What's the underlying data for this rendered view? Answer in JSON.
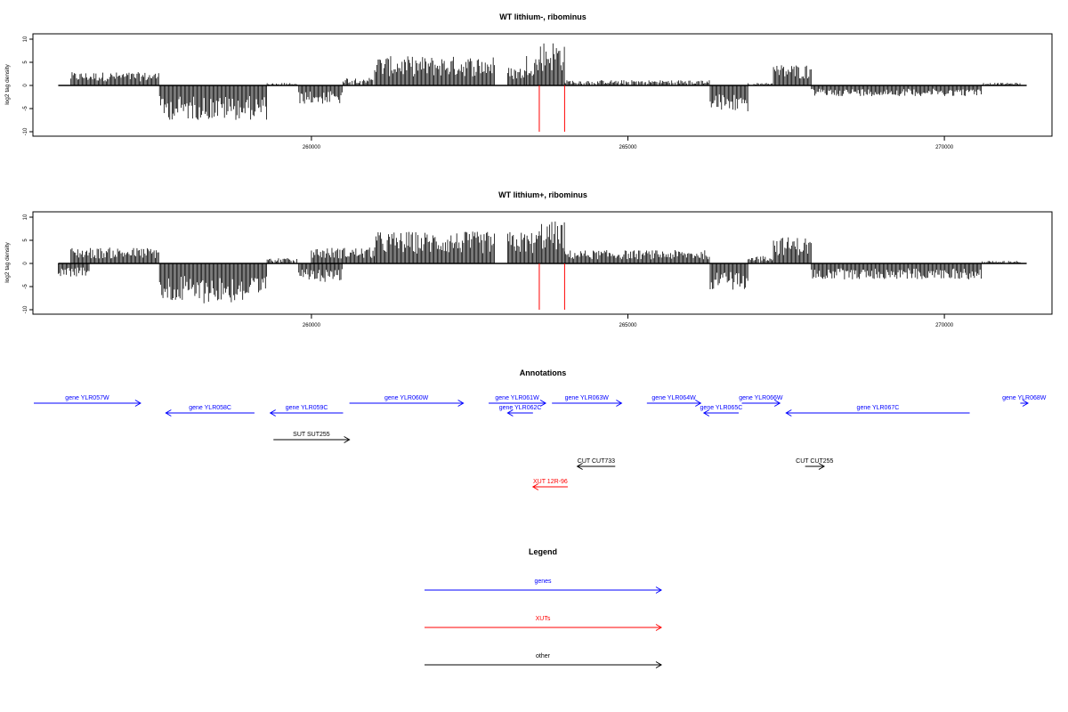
{
  "chart_data": [
    {
      "type": "bar",
      "title": "WT lithium-, ribominus",
      "ylabel": "log2 tag density",
      "xlim": [
        255600,
        271700
      ],
      "ylim": [
        -10,
        10
      ],
      "yticks": [
        -10,
        -5,
        0,
        5,
        10
      ],
      "xticks": [
        260000,
        265000,
        270000
      ],
      "xtick_labels": [
        "260000",
        "265000",
        "270000"
      ],
      "density_profile": [
        {
          "from": 256200,
          "to": 257600,
          "value": 2.5
        },
        {
          "from": 257600,
          "to": 259300,
          "value": -6.5
        },
        {
          "from": 259300,
          "to": 259800,
          "value": 0.5
        },
        {
          "from": 259800,
          "to": 260500,
          "value": -3.5
        },
        {
          "from": 260500,
          "to": 261000,
          "value": 1.5
        },
        {
          "from": 261000,
          "to": 262900,
          "value": 5.5
        },
        {
          "from": 263100,
          "to": 263400,
          "value": 3.5
        },
        {
          "from": 263400,
          "to": 263600,
          "value": 6.0
        },
        {
          "from": 263600,
          "to": 264000,
          "value": 8.5
        },
        {
          "from": 264000,
          "to": 266300,
          "value": 1.0
        },
        {
          "from": 266300,
          "to": 266900,
          "value": -5.0
        },
        {
          "from": 266900,
          "to": 267300,
          "value": 0.5
        },
        {
          "from": 267300,
          "to": 267900,
          "value": 4.0
        },
        {
          "from": 267900,
          "to": 270600,
          "value": -2.0
        },
        {
          "from": 270600,
          "to": 271200,
          "value": 0.5
        }
      ],
      "markers": [
        263600,
        264000
      ]
    },
    {
      "type": "bar",
      "title": "WT lithium+, ribominus",
      "ylabel": "log2 tag density",
      "xlim": [
        255600,
        271700
      ],
      "ylim": [
        -10,
        10
      ],
      "yticks": [
        -10,
        -5,
        0,
        5,
        10
      ],
      "xticks": [
        260000,
        265000,
        270000
      ],
      "xtick_labels": [
        "260000",
        "265000",
        "270000"
      ],
      "density_profile": [
        {
          "from": 256000,
          "to": 256500,
          "value": -2.5
        },
        {
          "from": 256200,
          "to": 257600,
          "value": 3.0
        },
        {
          "from": 257600,
          "to": 259300,
          "value": -7.5
        },
        {
          "from": 259300,
          "to": 259800,
          "value": 1.0
        },
        {
          "from": 259800,
          "to": 260500,
          "value": -3.5
        },
        {
          "from": 260000,
          "to": 261000,
          "value": 3.0
        },
        {
          "from": 261000,
          "to": 262900,
          "value": 6.0
        },
        {
          "from": 263100,
          "to": 263600,
          "value": 6.0
        },
        {
          "from": 263600,
          "to": 264000,
          "value": 8.0
        },
        {
          "from": 264000,
          "to": 266300,
          "value": 2.5
        },
        {
          "from": 266300,
          "to": 266900,
          "value": -5.0
        },
        {
          "from": 266900,
          "to": 267300,
          "value": 1.5
        },
        {
          "from": 267300,
          "to": 267900,
          "value": 5.0
        },
        {
          "from": 267900,
          "to": 270600,
          "value": -3.0
        },
        {
          "from": 270600,
          "to": 271200,
          "value": 0.5
        }
      ],
      "markers": [
        263600,
        264000
      ]
    }
  ],
  "annotations": {
    "title": "Annotations",
    "features": [
      {
        "label": "gene YLR057W",
        "start": 255100,
        "end": 257300,
        "strand": "+",
        "row": 0,
        "kind": "genes"
      },
      {
        "label": "gene YLR058C",
        "start": 257700,
        "end": 259100,
        "strand": "-",
        "row": 1,
        "kind": "genes"
      },
      {
        "label": "gene YLR059C",
        "start": 259350,
        "end": 260500,
        "strand": "-",
        "row": 1,
        "kind": "genes"
      },
      {
        "label": "gene YLR060W",
        "start": 260600,
        "end": 262400,
        "strand": "+",
        "row": 0,
        "kind": "genes"
      },
      {
        "label": "gene YLR061W",
        "start": 262800,
        "end": 263700,
        "strand": "+",
        "row": 0,
        "kind": "genes"
      },
      {
        "label": "gene YLR062C",
        "start": 263100,
        "end": 263500,
        "strand": "-",
        "row": 1,
        "kind": "genes"
      },
      {
        "label": "gene YLR063W",
        "start": 263800,
        "end": 264900,
        "strand": "+",
        "row": 0,
        "kind": "genes"
      },
      {
        "label": "gene YLR064W",
        "start": 265300,
        "end": 266150,
        "strand": "+",
        "row": 0,
        "kind": "genes"
      },
      {
        "label": "gene YLR065C",
        "start": 266200,
        "end": 266750,
        "strand": "-",
        "row": 1,
        "kind": "genes"
      },
      {
        "label": "gene YLR066W",
        "start": 266800,
        "end": 267400,
        "strand": "+",
        "row": 0,
        "kind": "genes"
      },
      {
        "label": "gene YLR067C",
        "start": 267500,
        "end": 270400,
        "strand": "-",
        "row": 1,
        "kind": "genes"
      },
      {
        "label": "gene YLR068W",
        "start": 271200,
        "end": 271900,
        "strand": "+",
        "row": 0,
        "kind": "genes"
      },
      {
        "label": "SUT SUT255",
        "start": 259400,
        "end": 260600,
        "strand": "+",
        "row": 2,
        "kind": "other"
      },
      {
        "label": "CUT CUT733",
        "start": 264200,
        "end": 264800,
        "strand": "-",
        "row": 3,
        "kind": "other"
      },
      {
        "label": "CUT CUT255",
        "start": 267800,
        "end": 268100,
        "strand": "+",
        "row": 3,
        "kind": "other"
      },
      {
        "label": "XUT 12R-96",
        "start": 263500,
        "end": 264050,
        "strand": "-",
        "row": 4,
        "kind": "xuts"
      }
    ]
  },
  "legend": {
    "title": "Legend",
    "items": [
      {
        "label": "genes",
        "color": "#0000ff"
      },
      {
        "label": "XUTs",
        "color": "#ff0000"
      },
      {
        "label": "other",
        "color": "#000000"
      }
    ]
  },
  "colors": {
    "genes": "#0000ff",
    "xuts": "#ff0000",
    "other": "#000000",
    "marker": "#ff0000"
  }
}
